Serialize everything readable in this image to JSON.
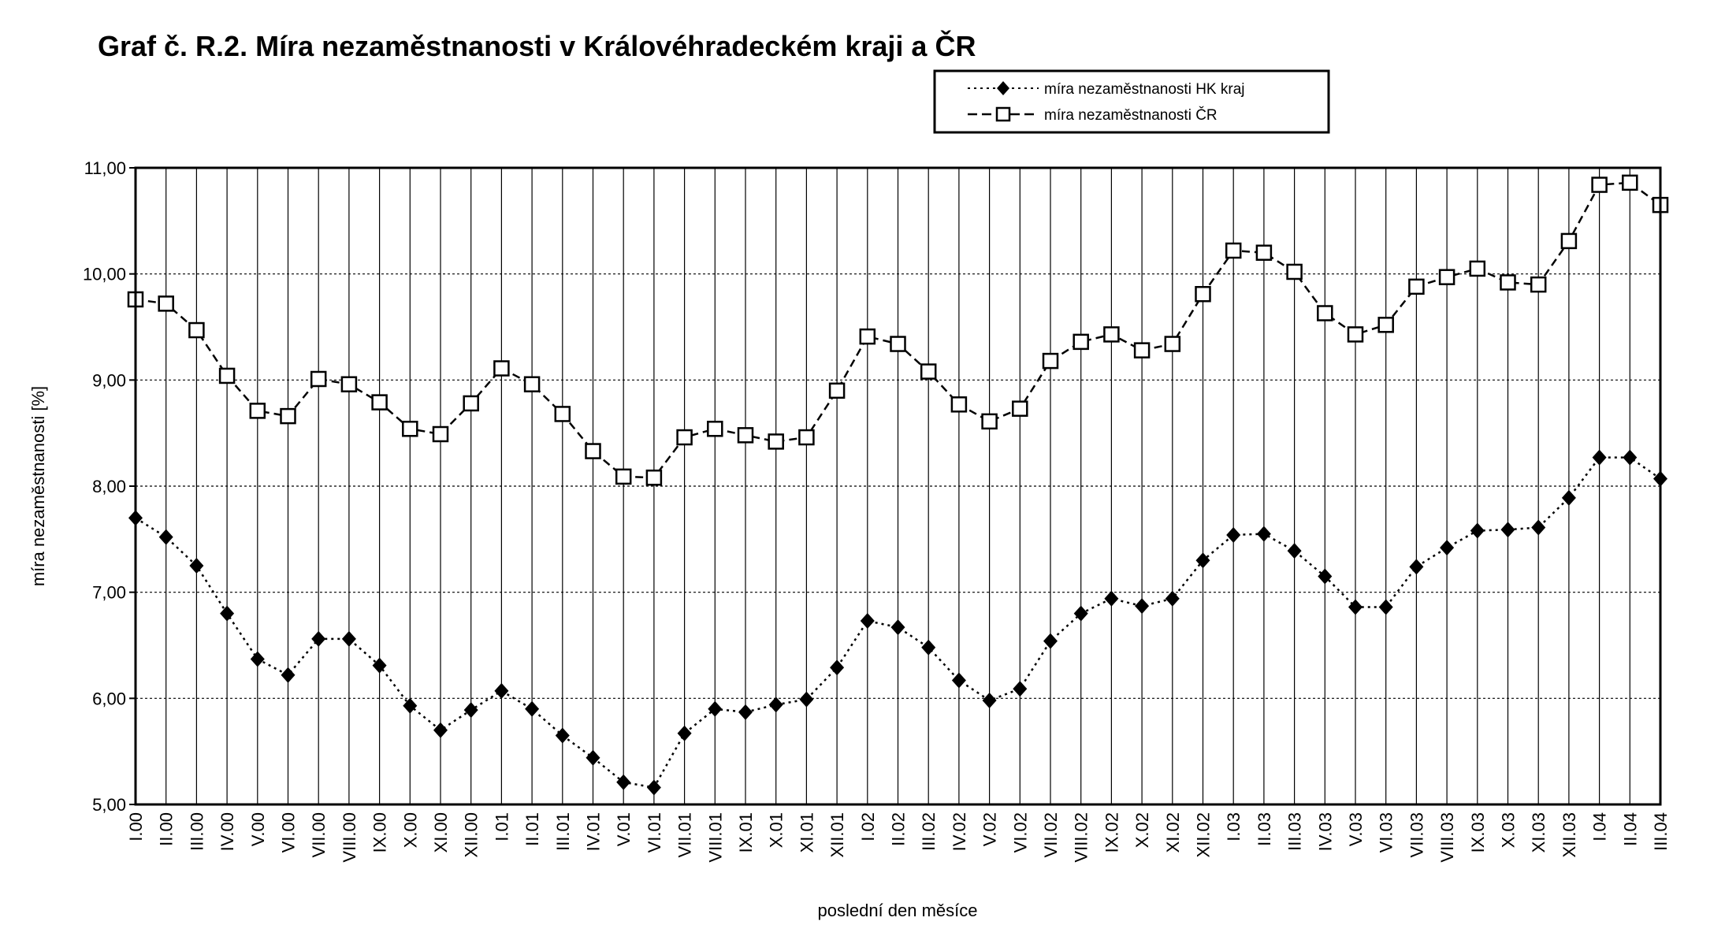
{
  "chart_data": {
    "type": "line",
    "title": "Graf č. R.2. Míra nezaměstnanosti v Královéhradeckém kraji a ČR",
    "xlabel": "poslední den měsíce",
    "ylabel": "míra nezaměstnanosti [%]",
    "ylim": [
      5,
      11
    ],
    "yticks": [
      "5,00",
      "6,00",
      "7,00",
      "8,00",
      "9,00",
      "10,00",
      "11,00"
    ],
    "grid": true,
    "legend_position": "top-right",
    "categories": [
      "I.00",
      "II.00",
      "III.00",
      "IV.00",
      "V.00",
      "VI.00",
      "VII.00",
      "VIII.00",
      "IX.00",
      "X.00",
      "XI.00",
      "XII.00",
      "I.01",
      "II.01",
      "III.01",
      "IV.01",
      "V.01",
      "VI.01",
      "VII.01",
      "VIII.01",
      "IX.01",
      "X.01",
      "XI.01",
      "XII.01",
      "I.02",
      "II.02",
      "III.02",
      "IV.02",
      "V.02",
      "VI.02",
      "VII.02",
      "VIII.02",
      "IX.02",
      "X.02",
      "XI.02",
      "XII.02",
      "I.03",
      "II.03",
      "III.03",
      "IV.03",
      "V.03",
      "VI.03",
      "VII.03",
      "VIII.03",
      "IX.03",
      "X.03",
      "XI.03",
      "XII.03",
      "I.04",
      "II.04",
      "III.04"
    ],
    "series": [
      {
        "name": "míra nezaměstnanosti HK kraj",
        "marker": "diamond",
        "line": "dotted",
        "values": [
          7.7,
          7.52,
          7.25,
          6.8,
          6.37,
          6.22,
          6.56,
          6.56,
          6.31,
          5.93,
          5.7,
          5.89,
          6.07,
          5.9,
          5.65,
          5.44,
          5.21,
          5.16,
          5.67,
          5.9,
          5.87,
          5.94,
          5.99,
          6.29,
          6.73,
          6.67,
          6.48,
          6.17,
          5.98,
          6.09,
          6.54,
          6.8,
          6.94,
          6.87,
          6.94,
          7.3,
          7.54,
          7.55,
          7.39,
          7.15,
          6.86,
          6.86,
          7.24,
          7.42,
          7.58,
          7.59,
          7.61,
          7.89,
          8.27,
          8.27,
          8.07
        ]
      },
      {
        "name": "míra nezaměstnanosti ČR",
        "marker": "square",
        "line": "dashed",
        "values": [
          9.76,
          9.72,
          9.47,
          9.04,
          8.71,
          8.66,
          9.01,
          8.96,
          8.79,
          8.54,
          8.49,
          8.78,
          9.11,
          8.96,
          8.68,
          8.33,
          8.09,
          8.08,
          8.46,
          8.54,
          8.48,
          8.42,
          8.46,
          8.9,
          9.41,
          9.34,
          9.08,
          8.77,
          8.61,
          8.73,
          9.18,
          9.36,
          9.43,
          9.28,
          9.34,
          9.81,
          10.22,
          10.2,
          10.02,
          9.63,
          9.43,
          9.52,
          9.88,
          9.97,
          10.05,
          9.92,
          9.9,
          10.31,
          10.84,
          10.86,
          10.65
        ]
      }
    ]
  }
}
